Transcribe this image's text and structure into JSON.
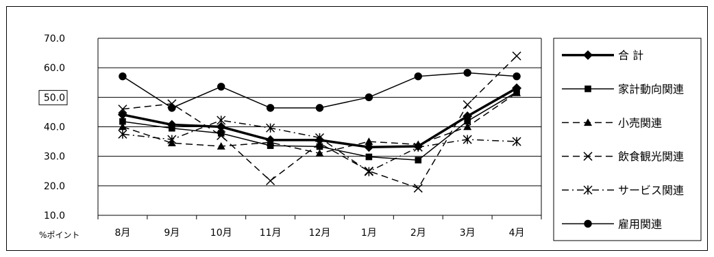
{
  "chart_data": {
    "type": "line",
    "categories": [
      "8月",
      "9月",
      "10月",
      "11月",
      "12月",
      "1月",
      "2月",
      "3月",
      "4月"
    ],
    "ylim": [
      10,
      70
    ],
    "yticks": [
      "10.0",
      "20.0",
      "30.0",
      "40.0",
      "50.0",
      "60.0",
      "70.0"
    ],
    "highlighted_tick": "50.0",
    "ylabel": "%ポイント",
    "grid": true,
    "legend_position": "right",
    "series": [
      {
        "name": "合 計",
        "marker": "diamond",
        "dash": "solid",
        "width": "thick",
        "color": "#000000",
        "values": [
          44.1,
          40.7,
          40.0,
          35.5,
          35.5,
          33.1,
          33.4,
          43.6,
          53.1
        ]
      },
      {
        "name": "家計動向関連",
        "marker": "square",
        "dash": "solid",
        "width": "thin",
        "color": "#000000",
        "values": [
          41.8,
          39.5,
          37.8,
          33.6,
          33.3,
          29.8,
          28.7,
          41.9,
          51.8
        ]
      },
      {
        "name": "小売関連",
        "marker": "triangle",
        "dash": "dash",
        "width": "thin",
        "color": "#000000",
        "values": [
          40.0,
          34.5,
          33.4,
          34.7,
          31.0,
          35.0,
          34.0,
          40.0,
          51.5
        ]
      },
      {
        "name": "飲食観光関連",
        "marker": "x",
        "dash": "dash",
        "width": "thin",
        "color": "#000000",
        "values": [
          46.0,
          47.8,
          37.0,
          21.7,
          34.4,
          25.0,
          19.2,
          47.5,
          64.0
        ]
      },
      {
        "name": "サービス関連",
        "marker": "star",
        "dash": "dashdot",
        "width": "thin",
        "color": "#000000",
        "values": [
          37.5,
          35.7,
          42.2,
          39.6,
          36.3,
          24.8,
          33.1,
          35.7,
          35.0
        ]
      },
      {
        "name": "雇用関連",
        "marker": "circle",
        "dash": "solid",
        "width": "thin",
        "color": "#000000",
        "values": [
          57.1,
          46.4,
          53.6,
          46.4,
          46.4,
          50.0,
          57.1,
          58.3,
          57.1
        ]
      }
    ]
  }
}
